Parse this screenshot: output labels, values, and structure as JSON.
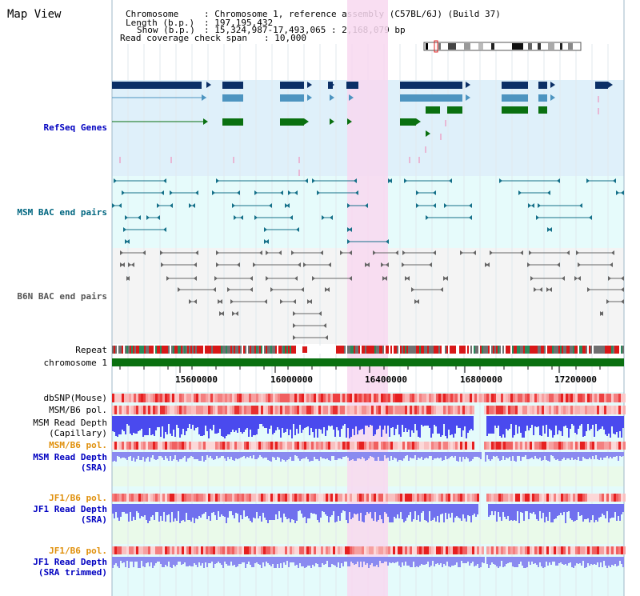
{
  "title": "Map View",
  "info": {
    "chromosome_label": "Chromosome",
    "chromosome_value": ": Chromosome 1, reference assembly (C57BL/6J) (Build 37)",
    "length_label": "Length (b.p.)",
    "length_value": ": 197,195,432",
    "show_label": "Show (b.p.)",
    "show_value": ": 15,324,987-17,493,065 : 2,168,079 bp",
    "coverage_label": "Read coverage check span",
    "coverage_value": ": 10,000"
  },
  "tracks": {
    "refseq": "RefSeq Genes",
    "msm_bac": "MSM BAC end pairs",
    "b6n_bac": "B6N BAC end pairs",
    "repeat": "Repeat",
    "chromosome": "chromosome 1",
    "dbsnp": "dbSNP(Mouse)",
    "msm_pol": "MSM/B6 pol.",
    "msm_depth_cap_1": "MSM Read Depth",
    "msm_depth_cap_2": "(Capillary)",
    "msm_pol2": "MSM/B6 pol.",
    "msm_depth_sra_1": "MSM Read Depth",
    "msm_depth_sra_2": "(SRA)",
    "jf1_pol": "JF1/B6 pol.",
    "jf1_depth_1": "JF1 Read Depth",
    "jf1_depth_2": "(SRA)",
    "jf1_pol2": "JF1/B6 pol.",
    "jf1_trim_1": "JF1 Read Depth",
    "jf1_trim_2": "(SRA trimmed)"
  },
  "axis_ticks": [
    "15600000",
    "16000000",
    "16400000",
    "16800000",
    "17200000"
  ],
  "colors": {
    "refseq_bg": "#dff0fa",
    "msm_bg": "#e6fbfb",
    "b6n_bg": "#f4f4f4",
    "highlight": "#f8d8f0",
    "gene_dark": "#0b2f66",
    "gene_mid": "#4d94c0",
    "gene_green": "#0a7010",
    "msm_feature": "#157089",
    "b6n_feature": "#666666",
    "chrom_bar": "#0a7010"
  }
}
